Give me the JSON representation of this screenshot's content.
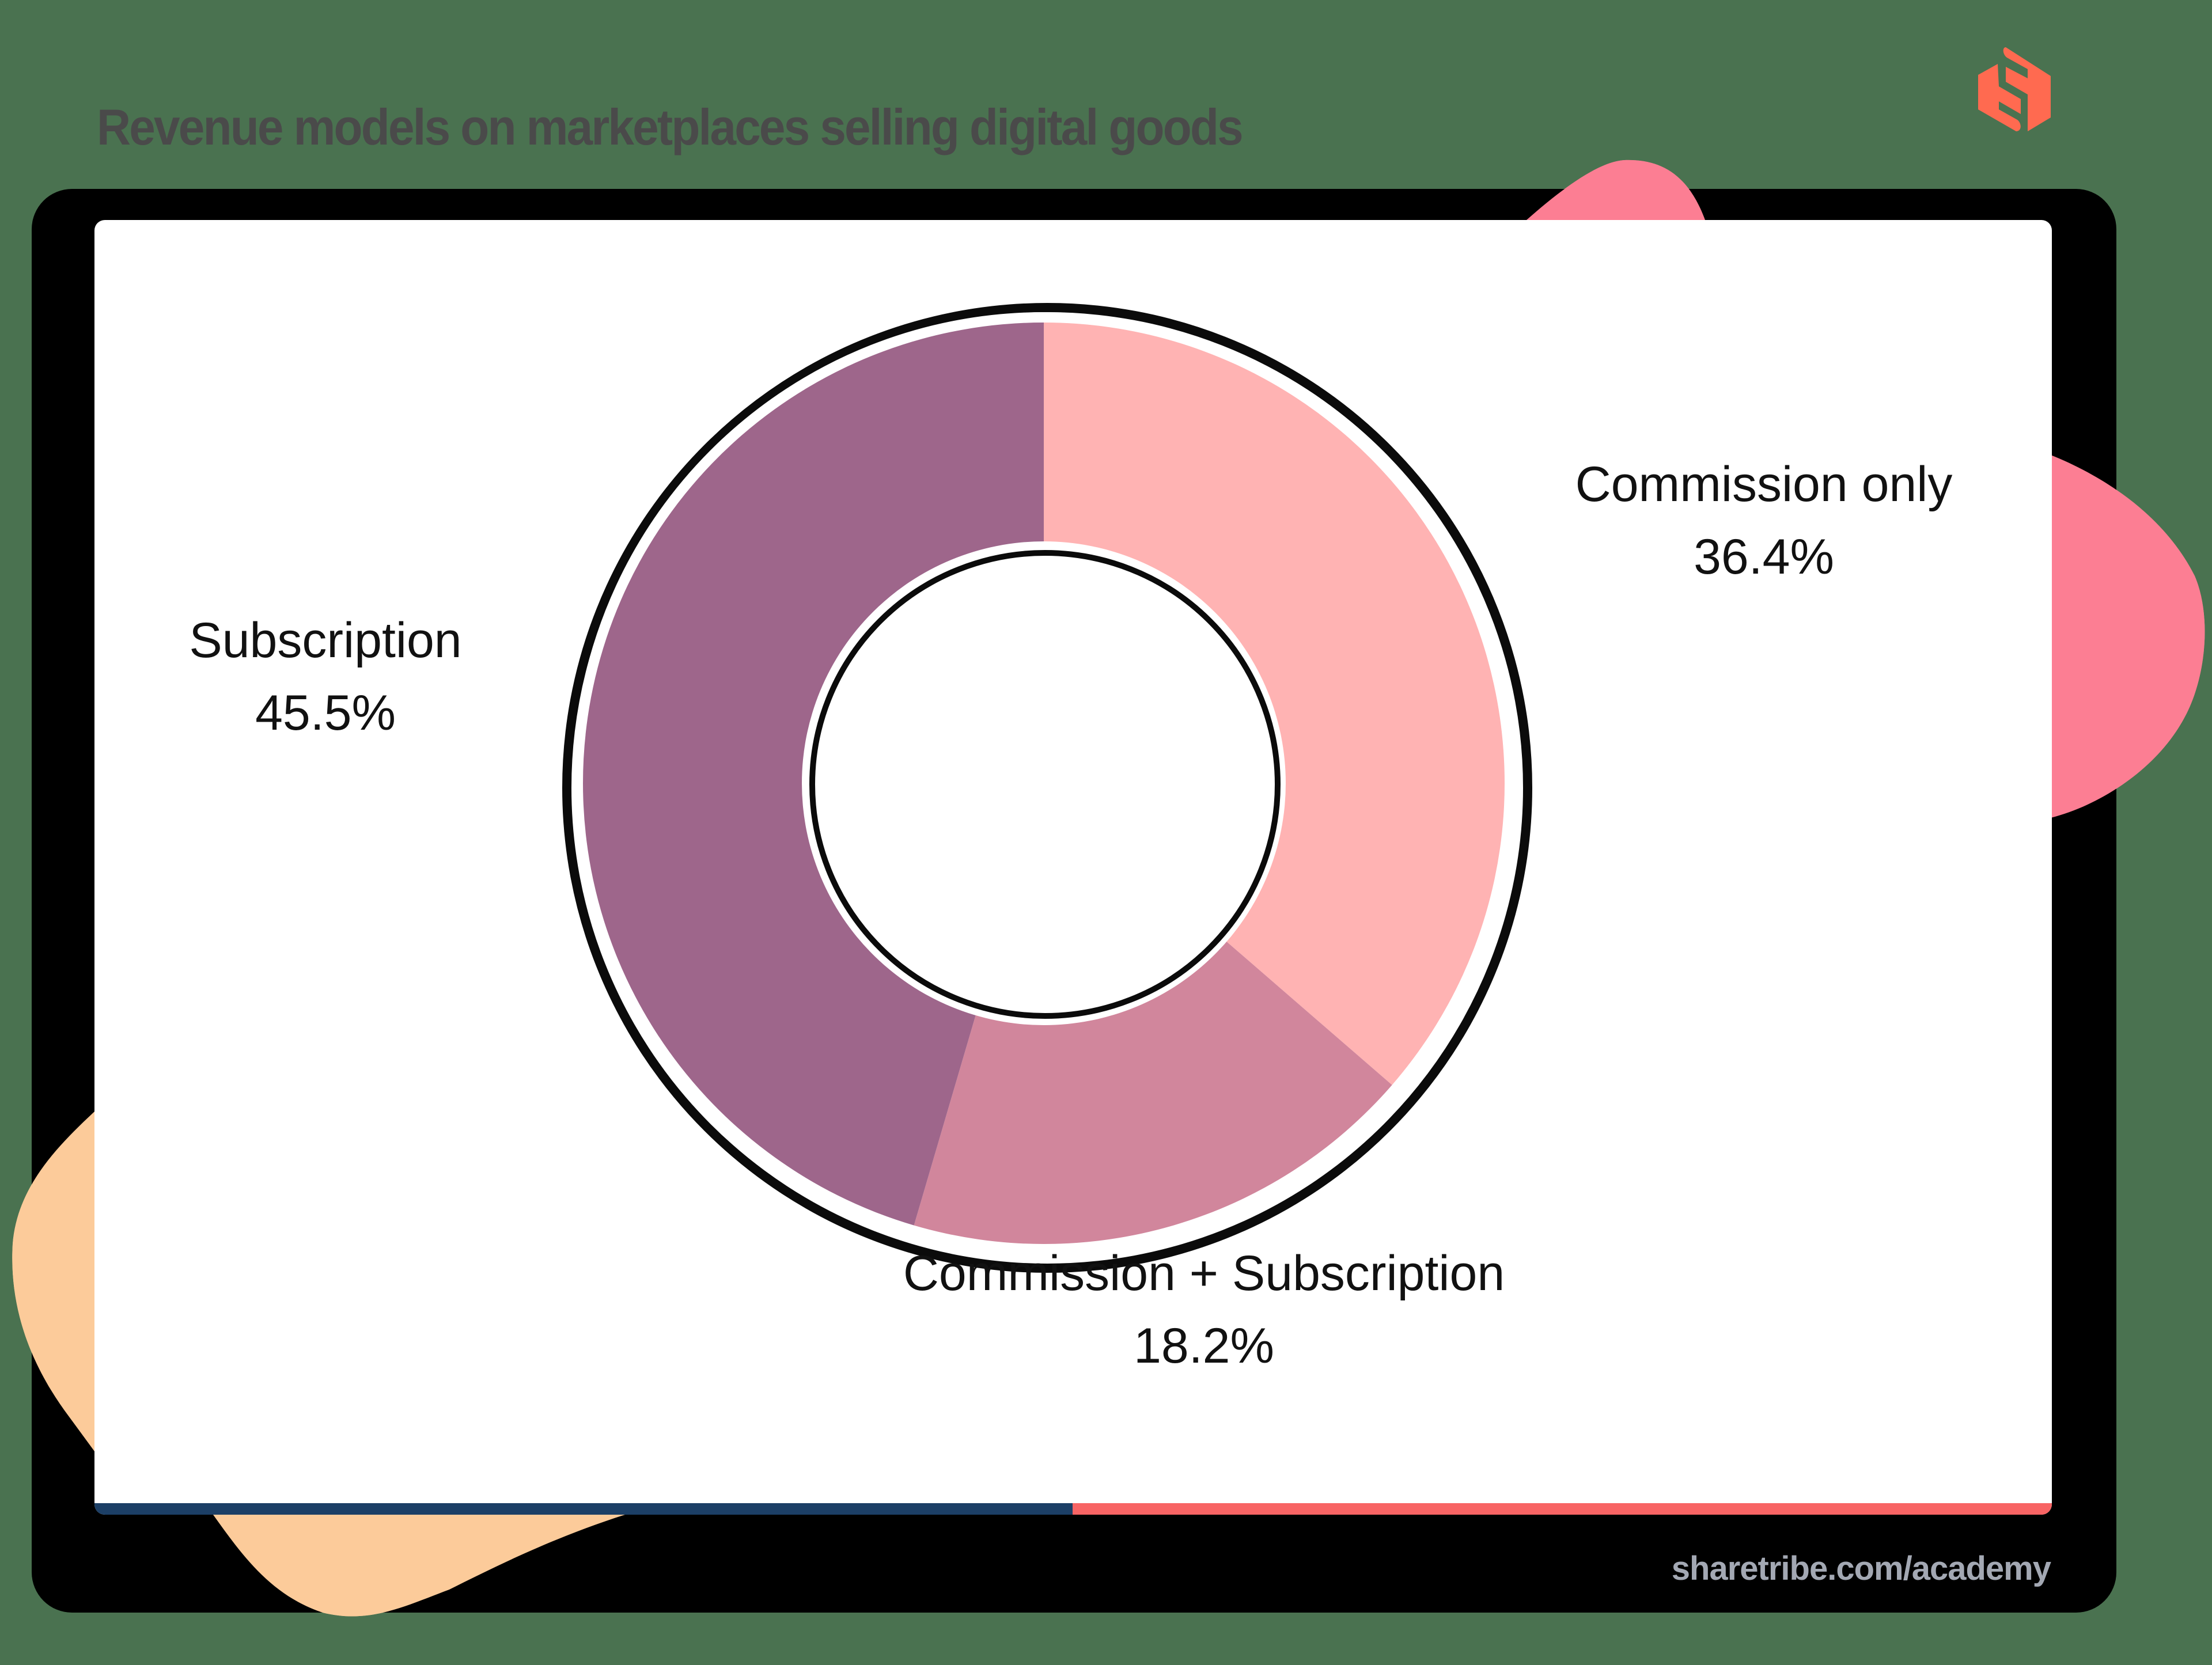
{
  "header": {
    "title": "Revenue models on marketplaces selling digital goods",
    "logo_icon": "sharetribe-logo-icon"
  },
  "footer": {
    "source": "sharetribe.com/academy"
  },
  "colors": {
    "background": "#4A7250",
    "title": "#4A4A4A",
    "frame": "#000000",
    "card": "#FFFFFF",
    "logo": "#FF6A50",
    "blob_pink": "#FC7E93",
    "blob_peach": "#FCCB9A",
    "bar_left": "#1C3F66",
    "bar_right": "#F86464",
    "subscription": "#9E668B",
    "commission_plus_subscription": "#D1869C",
    "commission_only": "#FFB3B3",
    "footer_text": "#A3A8B3"
  },
  "labels": {
    "commission_only": {
      "name": "Commission only",
      "value": "36.4%"
    },
    "commission_plus_subscription": {
      "name": "Commission + Subscription",
      "value": "18.2%"
    },
    "subscription": {
      "name": "Subscription",
      "value": "45.5%"
    }
  },
  "chart_data": {
    "type": "pie",
    "subtype": "donut",
    "title": "Revenue models on marketplaces selling digital goods",
    "categories": [
      "Commission only",
      "Commission + Subscription",
      "Subscription"
    ],
    "values": [
      36.4,
      18.2,
      45.5
    ],
    "unit": "%",
    "colors": [
      "#FFB3B3",
      "#D1869C",
      "#9E668B"
    ],
    "start_angle": "12 o'clock, clockwise",
    "legend": "none (direct labels next to slices)",
    "source": "sharetribe.com/academy"
  }
}
